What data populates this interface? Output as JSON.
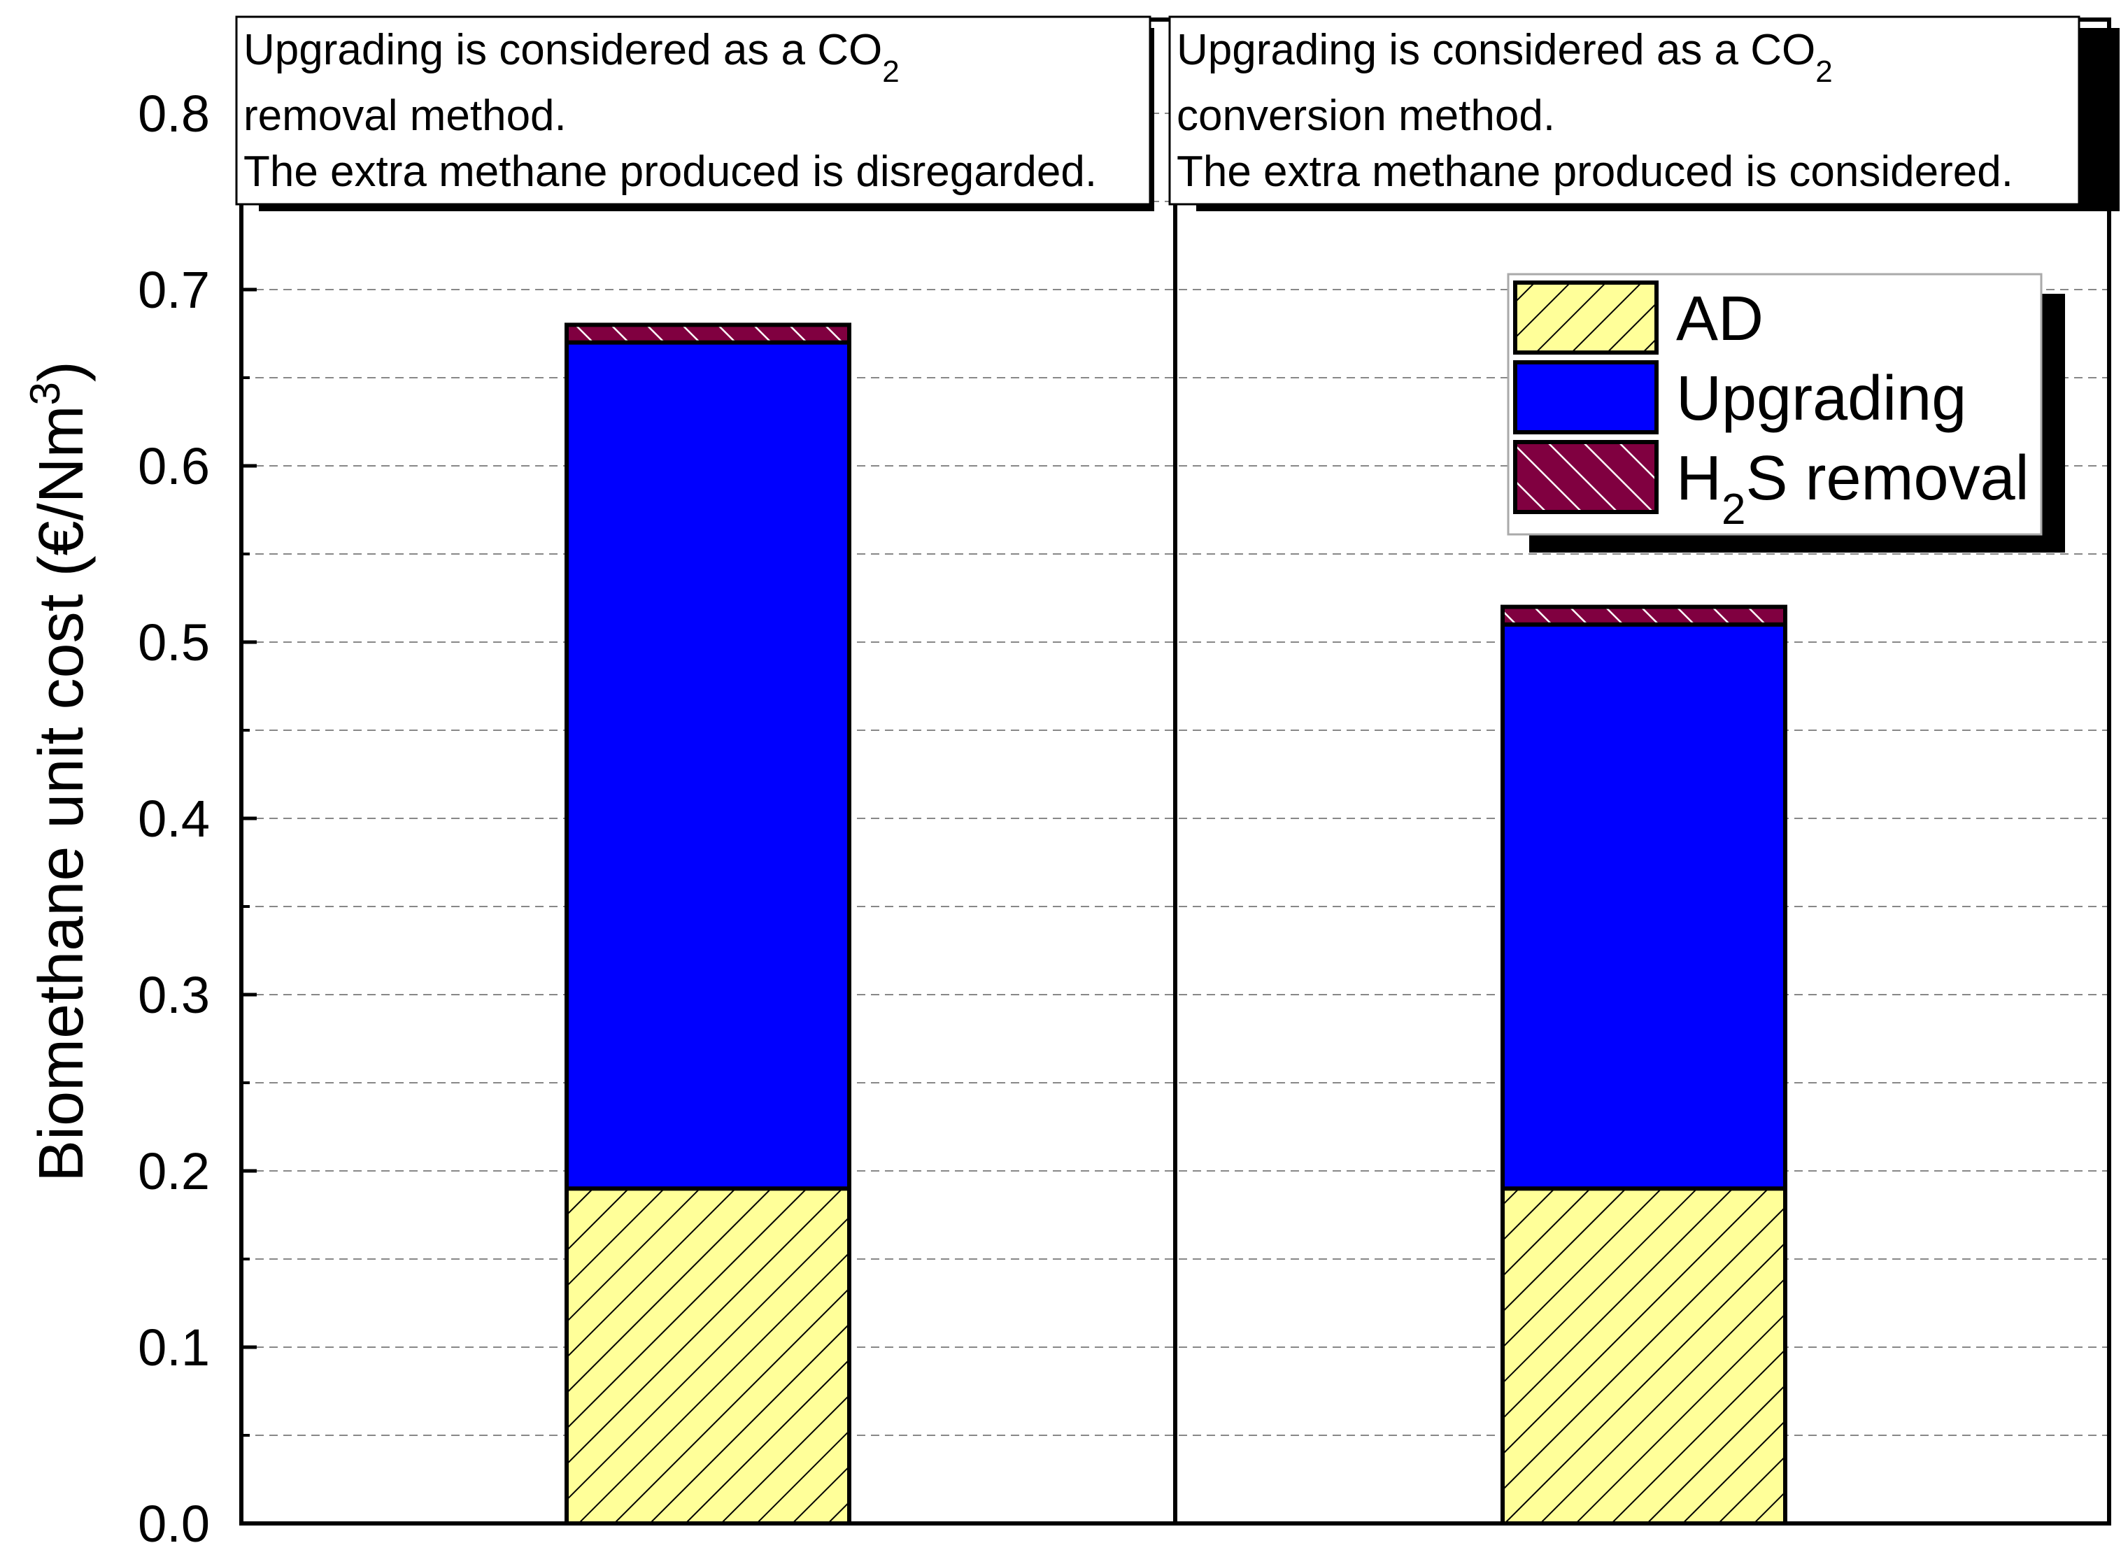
{
  "chart_data": {
    "type": "bar",
    "stacked": true,
    "categories": [
      "CO2 removal method",
      "CO2 conversion method"
    ],
    "series": [
      {
        "name": "AD",
        "values": [
          0.19,
          0.19
        ],
        "color": "#ffff99",
        "pattern": "hatch-forward"
      },
      {
        "name": "Upgrading",
        "values": [
          0.48,
          0.32
        ],
        "color": "#0000ff",
        "pattern": "solid"
      },
      {
        "name": "H2S removal",
        "values": [
          0.01,
          0.01
        ],
        "color": "#800040",
        "pattern": "hatch-backward"
      }
    ],
    "ylabel": "Biomethane unit cost (€/Nm3)",
    "ylabel_parts": {
      "main": "Biomethane unit cost (€/Nm",
      "superscript": "3",
      "close": ")"
    },
    "ylim": [
      0,
      0.85
    ],
    "yticks": [
      "0.0",
      "0.1",
      "0.2",
      "0.3",
      "0.4",
      "0.5",
      "0.6",
      "0.7",
      "0.8"
    ],
    "ytick_values": [
      0,
      0.1,
      0.2,
      0.3,
      0.4,
      0.5,
      0.6,
      0.7,
      0.8
    ],
    "grid": true,
    "legend": {
      "position": "top-right",
      "items": [
        {
          "label_main": "AD",
          "label_sub": "",
          "label_rest": ""
        },
        {
          "label_main": "Upgrading",
          "label_sub": "",
          "label_rest": ""
        },
        {
          "label_main": "H",
          "label_sub": "2",
          "label_rest": "S removal"
        }
      ]
    },
    "annotations": [
      {
        "line1_main": "Upgrading is considered as a CO",
        "line1_sub": "2",
        "line2": "removal method.",
        "line3": "The extra methane produced is disregarded."
      },
      {
        "line1_main": "Upgrading is considered as a CO",
        "line1_sub": "2",
        "line2": "conversion method.",
        "line3": "The extra methane produced is considered."
      }
    ]
  }
}
